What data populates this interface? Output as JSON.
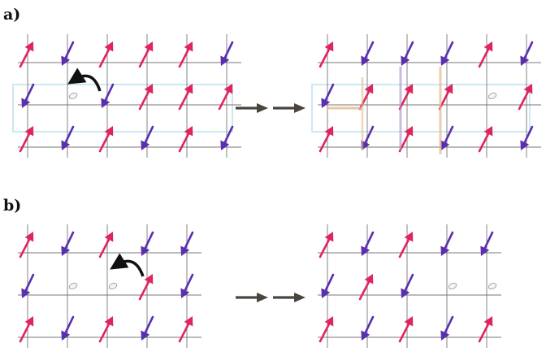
{
  "panels": [
    {
      "label": "a)",
      "left": {
        "rows": [
          [
            "up",
            "down",
            "up",
            "up",
            "up",
            "down"
          ],
          [
            "down",
            "hole",
            "down",
            "up",
            "up",
            "up"
          ],
          [
            "up",
            "down",
            "up",
            "down",
            "up",
            "down"
          ]
        ],
        "hop_arrow": true
      },
      "right": {
        "rows": [
          [
            "up",
            "down",
            "down",
            "down",
            "up",
            "down"
          ],
          [
            "down",
            "up",
            "up",
            "up",
            "hole",
            "up"
          ],
          [
            "up",
            "down",
            "up",
            "down",
            "up",
            "down"
          ]
        ],
        "strings": true
      }
    },
    {
      "label": "b)",
      "left": {
        "rows": [
          [
            "up",
            "down",
            "up",
            "down",
            "down"
          ],
          [
            "down",
            "hole",
            "hole",
            "up",
            "down"
          ],
          [
            "up",
            "down",
            "up",
            "down",
            "up"
          ]
        ],
        "hop_arrow": true
      },
      "right": {
        "rows": [
          [
            "up",
            "down",
            "up",
            "down",
            "down"
          ],
          [
            "down",
            "up",
            "down",
            "hole",
            "hole"
          ],
          [
            "up",
            "down",
            "up",
            "down",
            "up"
          ]
        ]
      }
    }
  ],
  "colors": {
    "up": "#e0245e",
    "down": "#5a2fb0",
    "grid": "#777777",
    "hole": "#aaaaaa",
    "transfer_arrow": "#4a443f",
    "box": "#bfe3ec",
    "string_orange": "#e6b98e",
    "string_purple": "#a98fc9"
  }
}
